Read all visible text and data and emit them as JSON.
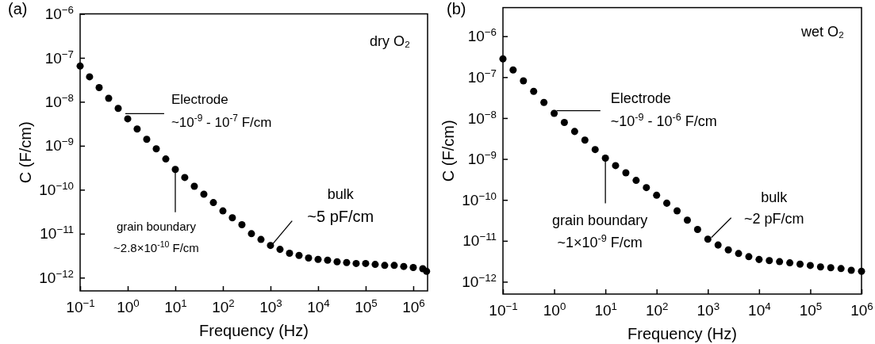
{
  "chart_data": [
    {
      "type": "scatter",
      "title": "(a)",
      "xlabel": "Frequency (Hz)",
      "ylabel": "C (F/cm)",
      "log": "xy",
      "marker": "circle",
      "grid": false,
      "xlim": [
        0.1,
        2000000
      ],
      "ylim": [
        5e-13,
        1e-06
      ],
      "xticks": [
        {
          "value": 0.1,
          "label": "10$^{−1}$"
        },
        {
          "value": 1,
          "label": "10$^{0}$"
        },
        {
          "value": 10,
          "label": "10$^{1}$"
        },
        {
          "value": 100,
          "label": "10$^{2}$"
        },
        {
          "value": 1000,
          "label": "10$^{3}$"
        },
        {
          "value": 10000,
          "label": "10$^{4}$"
        },
        {
          "value": 100000,
          "label": "10$^{5}$"
        },
        {
          "value": 1000000,
          "label": "10$^{6}$"
        }
      ],
      "yticks": [
        {
          "value": 1e-12,
          "label": "10$^{−12}$"
        },
        {
          "value": 1e-11,
          "label": "10$^{−11}$"
        },
        {
          "value": 1e-10,
          "label": "10$^{−10}$"
        },
        {
          "value": 1e-09,
          "label": "10$^{−9}$"
        },
        {
          "value": 1e-08,
          "label": "10$^{−8}$"
        },
        {
          "value": 1e-07,
          "label": "10$^{−7}$"
        },
        {
          "value": 1e-06,
          "label": "10$^{−6}$"
        }
      ],
      "annotations": [
        "dry O₂",
        "Electrode\n~10$^{-9}$ - 10$^{-7}$ F/cm",
        {
          "text": "grain boundary\n~2.8×10$^{-10}$ F/cm",
          "x": 10,
          "y": 2.9e-10
        },
        {
          "text": "bulk\n~5 pF/cm",
          "x": 1050,
          "y": 5.4e-12
        }
      ],
      "series": [
        {
          "color": "#000000",
          "x": [
            0.1,
            0.158,
            0.251,
            0.398,
            0.631,
            1,
            1.58,
            2.51,
            3.98,
            6.31,
            10,
            15.8,
            25.1,
            39.8,
            63.1,
            100,
            158,
            251,
            398,
            631,
            1000,
            1585,
            2512,
            3981,
            6310,
            10000,
            15849,
            25119,
            39811,
            63096,
            100000,
            158489,
            251189,
            398107,
            630957,
            1000000,
            1584893,
            1905461
          ],
          "values": [
            6.5e-08,
            3.7e-08,
            2.1e-08,
            1.2e-08,
            7.1e-09,
            4.1e-09,
            2.4e-09,
            1.4e-09,
            8.5e-10,
            5e-10,
            2.9e-10,
            1.9e-10,
            1.2e-10,
            7.9e-11,
            5.1e-11,
            3.3e-11,
            2.3e-11,
            1.6e-11,
            1e-11,
            7.4e-12,
            5.4e-12,
            4.4e-12,
            3.6e-12,
            3.2e-12,
            2.8e-12,
            2.6e-12,
            2.5e-12,
            2.3e-12,
            2.2e-12,
            2.1e-12,
            2.1e-12,
            2e-12,
            1.9e-12,
            1.9e-12,
            1.8e-12,
            1.7e-12,
            1.6e-12,
            1.4e-12
          ]
        }
      ]
    },
    {
      "type": "scatter",
      "title": "(b)",
      "xlabel": "Frequency (Hz)",
      "ylabel": "C (F/cm)",
      "log": "xy",
      "marker": "circle",
      "grid": false,
      "xlim": [
        0.1,
        1000000
      ],
      "ylim": [
        5e-13,
        5e-06
      ],
      "xticks": [
        {
          "value": 0.1,
          "label": "10$^{−1}$"
        },
        {
          "value": 1,
          "label": "10$^{0}$"
        },
        {
          "value": 10,
          "label": "10$^{1}$"
        },
        {
          "value": 100,
          "label": "10$^{2}$"
        },
        {
          "value": 1000,
          "label": "10$^{3}$"
        },
        {
          "value": 10000,
          "label": "10$^{4}$"
        },
        {
          "value": 100000,
          "label": "10$^{5}$"
        },
        {
          "value": 1000000,
          "label": "10$^{6}$"
        }
      ],
      "yticks": [
        {
          "value": 1e-12,
          "label": "10$^{−12}$"
        },
        {
          "value": 1e-11,
          "label": "10$^{−11}$"
        },
        {
          "value": 1e-10,
          "label": "10$^{−10}$"
        },
        {
          "value": 1e-09,
          "label": "10$^{−9}$"
        },
        {
          "value": 1e-08,
          "label": "10$^{−8}$"
        },
        {
          "value": 1e-07,
          "label": "10$^{−7}$"
        },
        {
          "value": 1e-06,
          "label": "10$^{−6}$"
        }
      ],
      "annotations": [
        "wet O₂",
        "Electrode\n~10$^{-9}$ - 10$^{-6}$ F/cm",
        {
          "text": "grain boundary\n~1×10$^{-9}$ F/cm",
          "x": 10,
          "y": 1e-09
        },
        {
          "text": "bulk\n~2 pF/cm",
          "x": 1170,
          "y": 1.2e-11
        }
      ],
      "series": [
        {
          "color": "#000000",
          "x": [
            0.1,
            0.158,
            0.251,
            0.398,
            0.631,
            1,
            1.58,
            2.51,
            3.98,
            6.31,
            10,
            15.8,
            25.1,
            39.8,
            63.1,
            100,
            158,
            251,
            398,
            631,
            1000,
            1585,
            2512,
            3981,
            6310,
            10000,
            15849,
            25119,
            39811,
            63096,
            100000,
            158489,
            251189,
            398107,
            630957,
            1000000
          ],
          "values": [
            2.8e-07,
            1.5e-07,
            8.1e-08,
            4.5e-08,
            2.4e-08,
            1.3e-08,
            7.8e-09,
            4.7e-09,
            2.9e-09,
            1.7e-09,
            1.05e-09,
            6.9e-10,
            4.6e-10,
            3e-10,
            2e-10,
            1.3e-10,
            8.3e-11,
            5.4e-11,
            3.2e-11,
            1.9e-11,
            1.1e-11,
            7.9e-12,
            6e-12,
            4.9e-12,
            4.1e-12,
            3.5e-12,
            3.3e-12,
            3.1e-12,
            2.9e-12,
            2.7e-12,
            2.5e-12,
            2.3e-12,
            2.2e-12,
            2.1e-12,
            1.9e-12,
            1.8e-12
          ]
        }
      ]
    }
  ]
}
